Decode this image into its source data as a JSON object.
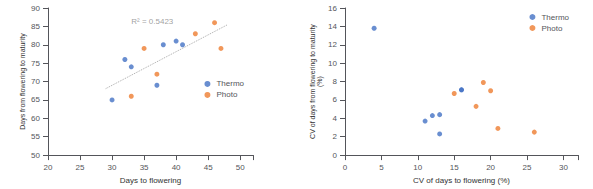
{
  "chart_data": [
    {
      "type": "scatter",
      "xlabel": "Days to flowering",
      "ylabel": "Days from flowering to maturity",
      "series": [
        {
          "name": "Thermo",
          "color": "#4472c4",
          "x": [
            30,
            32,
            33,
            37,
            38,
            40,
            41
          ],
          "values": [
            65,
            76,
            74,
            69,
            80,
            81,
            80
          ]
        },
        {
          "name": "Photo",
          "color": "#ed7d31",
          "x": [
            33,
            35,
            37,
            43,
            46,
            47
          ],
          "values": [
            66,
            79,
            72,
            83,
            86,
            79
          ]
        },
        {
          "type": "line",
          "line_style": "dotted",
          "color": "#aaaaaa",
          "x": [
            29,
            48
          ],
          "values": [
            68.064,
            85.4396
          ]
        }
      ],
      "annotations": [
        {
          "text": "R² = 0.5423",
          "x": 33,
          "y": 87.5
        }
      ],
      "xlim": [
        20,
        52
      ],
      "ylim": [
        50,
        90
      ],
      "xticks": [
        20,
        25,
        30,
        35,
        40,
        45,
        50
      ],
      "yticks": [
        50,
        55,
        60,
        65,
        70,
        75,
        80,
        85,
        90
      ],
      "grid": false,
      "legend": "right"
    },
    {
      "type": "scatter",
      "xlabel": "CV of days to flowering (%)",
      "ylabel": "CV of days from flowering to maturity\n(%)",
      "series": [
        {
          "name": "Thermo",
          "color": "#4472c4",
          "x": [
            4,
            11,
            12,
            13,
            13,
            16,
            16
          ],
          "values": [
            13.8,
            3.7,
            4.3,
            4.4,
            2.3,
            7.1,
            7.1
          ]
        },
        {
          "name": "Photo",
          "color": "#ed7d31",
          "x": [
            15,
            18,
            19,
            20,
            21,
            26
          ],
          "values": [
            6.7,
            5.3,
            7.9,
            7.0,
            2.9,
            2.5
          ]
        }
      ],
      "xlim": [
        0,
        32
      ],
      "ylim": [
        0,
        16
      ],
      "xticks": [
        0,
        5,
        10,
        15,
        20,
        25,
        30
      ],
      "yticks": [
        0,
        2,
        4,
        6,
        8,
        10,
        12,
        14,
        16
      ],
      "grid": false,
      "legend": "upper right"
    }
  ]
}
